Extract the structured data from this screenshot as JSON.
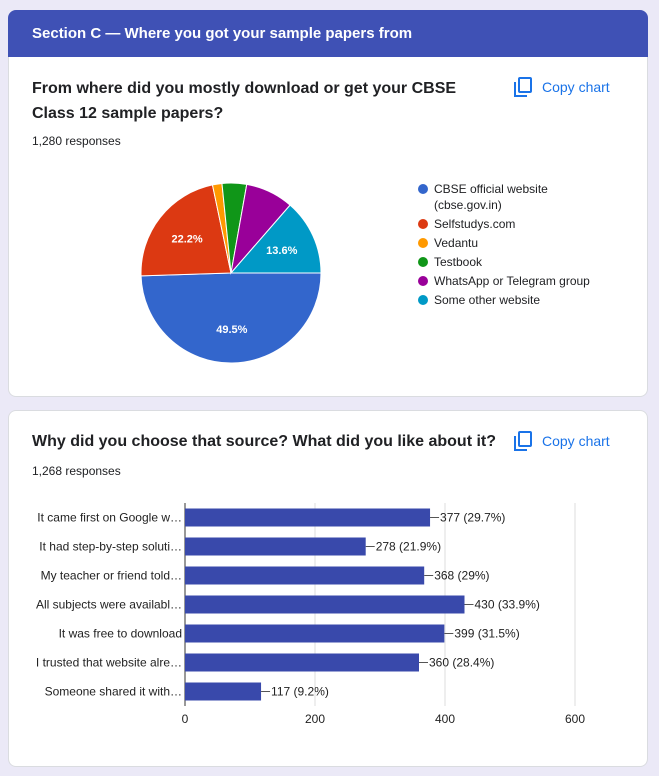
{
  "section_title": "Section C — Where you got your sample papers from",
  "chart_data": [
    {
      "type": "pie",
      "title": "From where did you mostly download or get your CBSE Class 12 sample papers?",
      "responses": "1,280 responses",
      "action": "Copy chart",
      "categories": [
        "CBSE official website (cbse.gov.in)",
        "Selfstudys.com",
        "Vedantu",
        "Testbook",
        "WhatsApp or Telegram group",
        "Some other website"
      ],
      "values": [
        49.5,
        22.2,
        1.7,
        4.4,
        8.6,
        13.6
      ],
      "value_labels": [
        "49.5%",
        "22.2%",
        null,
        null,
        null,
        "13.6%"
      ],
      "colors": [
        "#3366cc",
        "#dc3912",
        "#ff9900",
        "#109618",
        "#990099",
        "#0099c6"
      ],
      "legend": "right"
    },
    {
      "type": "bar",
      "orientation": "horizontal",
      "title": "Why did you choose that source? What did you like about it?",
      "responses": "1,268 responses",
      "action": "Copy chart",
      "categories": [
        "It came first on Google w…",
        "It had step-by-step soluti…",
        "My teacher or friend told…",
        "All subjects were availabl…",
        "It was free to download",
        "I trusted that website alre…",
        "Someone shared it with…"
      ],
      "values": [
        377,
        278,
        368,
        430,
        399,
        360,
        117
      ],
      "value_labels": [
        "377 (29.7%)",
        "278 (21.9%)",
        "368 (29%)",
        "430 (33.9%)",
        "399 (31.5%)",
        "360 (28.4%)",
        "117 (9.2%)"
      ],
      "color": "#3949ab",
      "xlim": [
        0,
        600
      ],
      "xticks": [
        0,
        200,
        400,
        600
      ],
      "grid": true
    }
  ]
}
